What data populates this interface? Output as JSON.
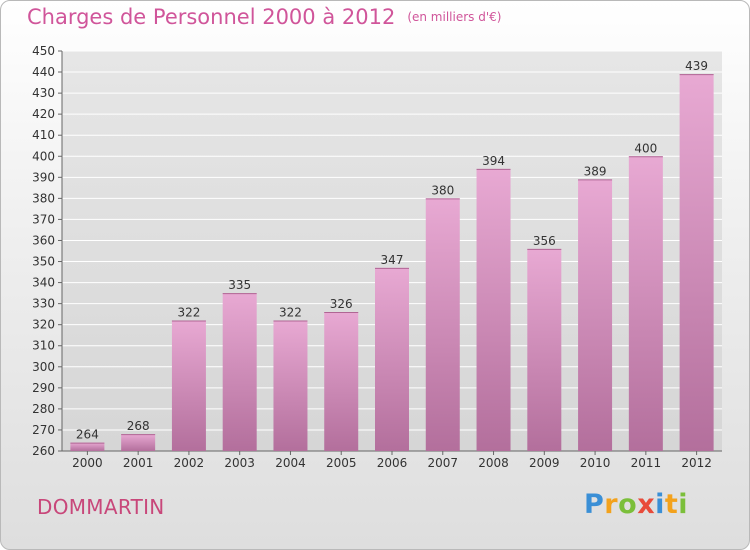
{
  "header": {
    "title": "Charges de Personnel 2000 à 2012",
    "unit": "(en milliers d'€)"
  },
  "footer": {
    "place": "DOMMARTIN",
    "logo_text": "Proxiti"
  },
  "colors": {
    "title": "#d0559a",
    "bar_top": "#e8a9d3",
    "bar_bottom": "#b36f9c",
    "grid": "#ffffff"
  },
  "chart_data": {
    "type": "bar",
    "title": "Charges de Personnel 2000 à 2012",
    "subtitle": "(en milliers d'€)",
    "categories": [
      "2000",
      "2001",
      "2002",
      "2003",
      "2004",
      "2005",
      "2006",
      "2007",
      "2008",
      "2009",
      "2010",
      "2011",
      "2012"
    ],
    "values": [
      264,
      268,
      322,
      335,
      322,
      326,
      347,
      380,
      394,
      356,
      389,
      400,
      439
    ],
    "xlabel": "",
    "ylabel": "",
    "ylim": [
      260,
      450
    ],
    "ytick_step": 10,
    "grid": true,
    "data_labels": true
  }
}
